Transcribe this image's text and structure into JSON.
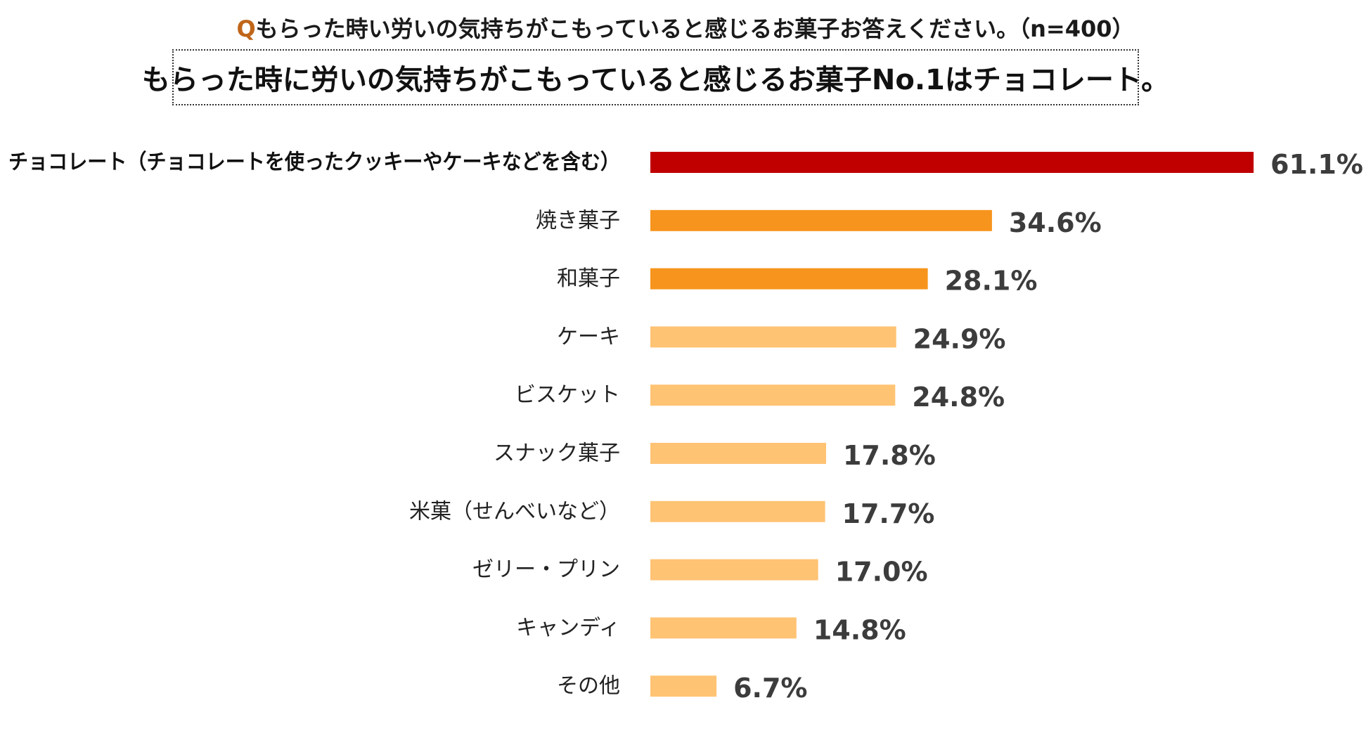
{
  "question": {
    "prefix": "Q",
    "text": "もらった時い労いの気持ちがこもっていると感じるお菓子お答えください。（n=400）"
  },
  "headline": "もらった時に労いの気持ちがこもっていると感じるお菓子No.1はチョコレート。",
  "colors": {
    "top": "#c00000",
    "second": "#f7941d",
    "rest": "#ffc374",
    "question_prefix": "#c0661a"
  },
  "chart_data": {
    "type": "bar",
    "orientation": "horizontal",
    "categories": [
      "チョコレート（チョコレートを使ったクッキーやケーキなどを含む）",
      "焼き菓子",
      "和菓子",
      "ケーキ",
      "ビスケット",
      "スナック菓子",
      "米菓（せんべいなど）",
      "ゼリー・プリン",
      "キャンディ",
      "その他"
    ],
    "values": [
      61.1,
      34.6,
      28.1,
      24.9,
      24.8,
      17.8,
      17.7,
      17.0,
      14.8,
      6.7
    ],
    "value_labels": [
      "61.1%",
      "34.6%",
      "28.1%",
      "24.9%",
      "24.8%",
      "17.8%",
      "17.7%",
      "17.0%",
      "14.8%",
      "6.7%"
    ],
    "color_groups": [
      "top",
      "second",
      "second",
      "rest",
      "rest",
      "rest",
      "rest",
      "rest",
      "rest",
      "rest"
    ],
    "xlim": [
      0,
      61.1
    ],
    "grid": false,
    "legend": "none"
  }
}
